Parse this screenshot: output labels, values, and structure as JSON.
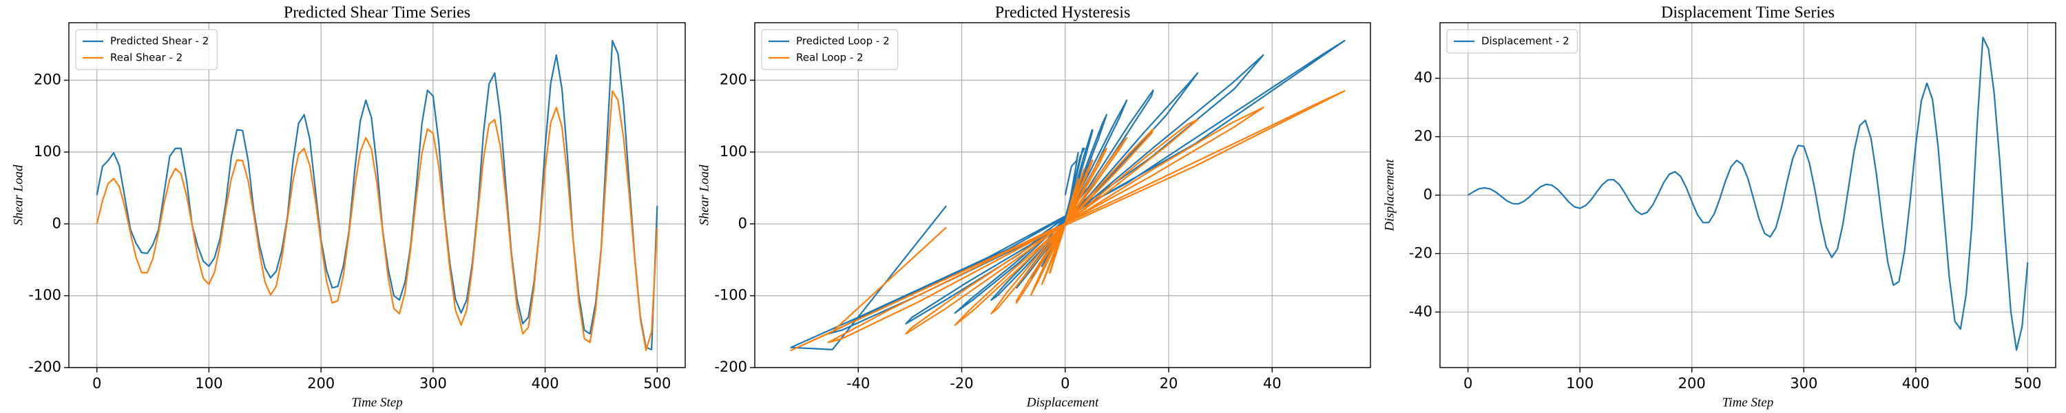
{
  "chart_data": [
    {
      "type": "line",
      "title": "Predicted Shear Time Series",
      "xlabel": "Time Step",
      "ylabel": "Shear Load",
      "x": [
        0,
        5,
        10,
        15,
        20,
        25,
        30,
        35,
        40,
        45,
        50,
        55,
        60,
        65,
        70,
        75,
        80,
        85,
        90,
        95,
        100,
        105,
        110,
        115,
        120,
        125,
        130,
        135,
        140,
        145,
        150,
        155,
        160,
        165,
        170,
        175,
        180,
        185,
        190,
        195,
        200,
        205,
        210,
        215,
        220,
        225,
        230,
        235,
        240,
        245,
        250,
        255,
        260,
        265,
        270,
        275,
        280,
        285,
        290,
        295,
        300,
        305,
        310,
        315,
        320,
        325,
        330,
        335,
        340,
        345,
        350,
        355,
        360,
        365,
        370,
        375,
        380,
        385,
        390,
        395,
        400,
        405,
        410,
        415,
        420,
        425,
        430,
        435,
        440,
        445,
        450,
        455,
        460,
        465,
        470,
        475,
        480,
        485,
        490,
        495,
        500
      ],
      "series": [
        {
          "name": "Predicted Shear - 2",
          "color": "#1f77b4",
          "values": [
            40,
            80,
            88,
            99,
            81,
            36,
            -8,
            -27,
            -40,
            -41,
            -29,
            -8,
            43,
            94,
            105,
            105,
            61,
            -2,
            -31,
            -52,
            -59,
            -47,
            -20,
            29,
            94,
            131,
            130,
            88,
            19,
            -29,
            -61,
            -75,
            -66,
            -37,
            9,
            87,
            140,
            152,
            118,
            47,
            -22,
            -65,
            -89,
            -87,
            -58,
            -10,
            73,
            143,
            172,
            148,
            79,
            -9,
            -63,
            -100,
            -106,
            -81,
            -30,
            51,
            139,
            186,
            178,
            115,
            16,
            -55,
            -105,
            -124,
            -106,
            -55,
            23,
            127,
            195,
            210,
            151,
            52,
            -42,
            -105,
            -139,
            -130,
            -82,
            -8,
            107,
            196,
            235,
            188,
            92,
            -22,
            -99,
            -148,
            -153,
            -111,
            -35,
            111,
            255,
            237,
            166,
            57,
            -47,
            -130,
            -172,
            -175,
            25
          ]
        },
        {
          "name": "Real Shear - 2",
          "color": "#ff7f0e",
          "values": [
            0,
            32,
            56,
            63,
            52,
            23,
            -13,
            -47,
            -68,
            -68,
            -48,
            -12,
            29,
            62,
            77,
            70,
            40,
            -2,
            -46,
            -76,
            -84,
            -67,
            -29,
            20,
            63,
            89,
            88,
            60,
            13,
            -39,
            -81,
            -99,
            -87,
            -48,
            6,
            60,
            97,
            105,
            81,
            33,
            -27,
            -80,
            -110,
            -107,
            -71,
            -13,
            51,
            100,
            120,
            104,
            56,
            -11,
            -75,
            -118,
            -125,
            -95,
            -35,
            36,
            98,
            132,
            126,
            81,
            11,
            -63,
            -120,
            -141,
            -120,
            -62,
            16,
            91,
            139,
            145,
            108,
            37,
            -46,
            -117,
            -153,
            -144,
            -90,
            -8,
            77,
            141,
            162,
            135,
            66,
            -23,
            -108,
            -160,
            -165,
            -120,
            -38,
            80,
            185,
            172,
            120,
            41,
            -50,
            -133,
            -176,
            -150,
            -5
          ]
        }
      ],
      "xlim": [
        -25,
        525
      ],
      "xticks": [
        0,
        100,
        200,
        300,
        400,
        500
      ],
      "ylim": [
        -200,
        280
      ],
      "yticks": [
        -200,
        -100,
        0,
        100,
        200
      ],
      "grid": true,
      "legend": "upper-left"
    },
    {
      "type": "line",
      "title": "Predicted Hysteresis",
      "xlabel": "Displacement",
      "ylabel": "Shear Load",
      "series": [
        {
          "name": "Predicted Loop - 2",
          "color": "#1f77b4",
          "x": [
            0,
            1.2,
            2.2,
            2.5,
            2.1,
            1.0,
            -0.5,
            -2.0,
            -2.9,
            -3.0,
            -2.1,
            -0.6,
            1.3,
            2.9,
            3.7,
            3.4,
            2.0,
            -0.1,
            -2.3,
            -4.0,
            -4.5,
            -3.6,
            -1.6,
            1.1,
            3.6,
            5.2,
            5.3,
            3.7,
            0.8,
            -2.5,
            -5.3,
            -6.6,
            -5.9,
            -3.4,
            0.4,
            4.4,
            7.2,
            8.0,
            6.4,
            2.6,
            -2.2,
            -6.7,
            -9.4,
            -9.4,
            -6.4,
            -1.2,
            4.8,
            9.7,
            11.9,
            10.5,
            5.8,
            -1.1,
            -8.1,
            -13.1,
            -14.3,
            -11.2,
            -4.3,
            4.5,
            12.4,
            17.0,
            16.7,
            11.0,
            1.6,
            -9.1,
            -17.7,
            -21.3,
            -18.5,
            -9.8,
            2.7,
            15.2,
            23.8,
            25.6,
            19.5,
            6.9,
            -8.8,
            -22.9,
            -30.8,
            -29.6,
            -19.1,
            -1.8,
            17.2,
            32.3,
            38.3,
            32.7,
            16.5,
            -6.0,
            -28.2,
            -43.2,
            -45.8,
            -34.1,
            -11.0,
            25,
            54,
            50,
            35,
            12,
            -15,
            -40,
            -53,
            -45,
            -23
          ],
          "values": [
            40,
            80,
            88,
            99,
            81,
            36,
            -8,
            -27,
            -40,
            -41,
            -29,
            -8,
            43,
            94,
            105,
            105,
            61,
            -2,
            -31,
            -52,
            -59,
            -47,
            -20,
            29,
            94,
            131,
            130,
            88,
            19,
            -29,
            -61,
            -75,
            -66,
            -37,
            9,
            87,
            140,
            152,
            118,
            47,
            -22,
            -65,
            -89,
            -87,
            -58,
            -10,
            73,
            143,
            172,
            148,
            79,
            -9,
            -63,
            -100,
            -106,
            -81,
            -30,
            51,
            139,
            186,
            178,
            115,
            16,
            -55,
            -105,
            -124,
            -106,
            -55,
            23,
            127,
            195,
            210,
            151,
            52,
            -42,
            -105,
            -139,
            -130,
            -82,
            -8,
            107,
            196,
            235,
            188,
            92,
            -22,
            -99,
            -148,
            -153,
            -111,
            -35,
            111,
            255,
            237,
            166,
            57,
            -47,
            -130,
            -172,
            -175,
            25
          ]
        },
        {
          "name": "Real Loop - 2",
          "color": "#ff7f0e",
          "x": [
            0,
            1.2,
            2.2,
            2.5,
            2.1,
            1.0,
            -0.5,
            -2.0,
            -2.9,
            -3.0,
            -2.1,
            -0.6,
            1.3,
            2.9,
            3.7,
            3.4,
            2.0,
            -0.1,
            -2.3,
            -4.0,
            -4.5,
            -3.6,
            -1.6,
            1.1,
            3.6,
            5.2,
            5.3,
            3.7,
            0.8,
            -2.5,
            -5.3,
            -6.6,
            -5.9,
            -3.4,
            0.4,
            4.4,
            7.2,
            8.0,
            6.4,
            2.6,
            -2.2,
            -6.7,
            -9.4,
            -9.4,
            -6.4,
            -1.2,
            4.8,
            9.7,
            11.9,
            10.5,
            5.8,
            -1.1,
            -8.1,
            -13.1,
            -14.3,
            -11.2,
            -4.3,
            4.5,
            12.4,
            17.0,
            16.7,
            11.0,
            1.6,
            -9.1,
            -17.7,
            -21.3,
            -18.5,
            -9.8,
            2.7,
            15.2,
            23.8,
            25.6,
            19.5,
            6.9,
            -8.8,
            -22.9,
            -30.8,
            -29.6,
            -19.1,
            -1.8,
            17.2,
            32.3,
            38.3,
            32.7,
            16.5,
            -6.0,
            -28.2,
            -43.2,
            -45.8,
            -34.1,
            -11.0,
            25,
            54,
            50,
            35,
            12,
            -15,
            -40,
            -53,
            -45,
            -23
          ],
          "values": [
            0,
            32,
            56,
            63,
            52,
            23,
            -13,
            -47,
            -68,
            -68,
            -48,
            -12,
            29,
            62,
            77,
            70,
            40,
            -2,
            -46,
            -76,
            -84,
            -67,
            -29,
            20,
            63,
            89,
            88,
            60,
            13,
            -39,
            -81,
            -99,
            -87,
            -48,
            6,
            60,
            97,
            105,
            81,
            33,
            -27,
            -80,
            -110,
            -107,
            -71,
            -13,
            51,
            100,
            120,
            104,
            56,
            -11,
            -75,
            -118,
            -125,
            -95,
            -35,
            36,
            98,
            132,
            126,
            81,
            11,
            -63,
            -120,
            -141,
            -120,
            -62,
            16,
            91,
            139,
            145,
            108,
            37,
            -46,
            -117,
            -153,
            -144,
            -90,
            -8,
            77,
            141,
            162,
            135,
            66,
            -23,
            -108,
            -160,
            -165,
            -120,
            -38,
            80,
            185,
            172,
            120,
            41,
            -50,
            -133,
            -176,
            -150,
            -5
          ]
        }
      ],
      "xlim": [
        -60,
        59
      ],
      "xticks": [
        -40,
        -20,
        0,
        20,
        40
      ],
      "ylim": [
        -200,
        280
      ],
      "yticks": [
        -200,
        -100,
        0,
        100,
        200
      ],
      "grid": true,
      "legend": "upper-left"
    },
    {
      "type": "line",
      "title": "Displacement Time Series",
      "xlabel": "Time Step",
      "ylabel": "Displacement",
      "x": [
        0,
        5,
        10,
        15,
        20,
        25,
        30,
        35,
        40,
        45,
        50,
        55,
        60,
        65,
        70,
        75,
        80,
        85,
        90,
        95,
        100,
        105,
        110,
        115,
        120,
        125,
        130,
        135,
        140,
        145,
        150,
        155,
        160,
        165,
        170,
        175,
        180,
        185,
        190,
        195,
        200,
        205,
        210,
        215,
        220,
        225,
        230,
        235,
        240,
        245,
        250,
        255,
        260,
        265,
        270,
        275,
        280,
        285,
        290,
        295,
        300,
        305,
        310,
        315,
        320,
        325,
        330,
        335,
        340,
        345,
        350,
        355,
        360,
        365,
        370,
        375,
        380,
        385,
        390,
        395,
        400,
        405,
        410,
        415,
        420,
        425,
        430,
        435,
        440,
        445,
        450,
        455,
        460,
        465,
        470,
        475,
        480,
        485,
        490,
        495,
        500
      ],
      "series": [
        {
          "name": "Displacement - 2",
          "color": "#1f77b4",
          "values": [
            0,
            1.2,
            2.2,
            2.5,
            2.1,
            1.0,
            -0.5,
            -2.0,
            -2.9,
            -3.0,
            -2.1,
            -0.6,
            1.3,
            2.9,
            3.7,
            3.4,
            2.0,
            -0.1,
            -2.3,
            -4.0,
            -4.5,
            -3.6,
            -1.6,
            1.1,
            3.6,
            5.2,
            5.3,
            3.7,
            0.8,
            -2.5,
            -5.3,
            -6.6,
            -5.9,
            -3.4,
            0.4,
            4.4,
            7.2,
            8.0,
            6.4,
            2.6,
            -2.2,
            -6.7,
            -9.4,
            -9.4,
            -6.4,
            -1.2,
            4.8,
            9.7,
            11.9,
            10.5,
            5.8,
            -1.1,
            -8.1,
            -13.1,
            -14.3,
            -11.2,
            -4.3,
            4.5,
            12.4,
            17.0,
            16.7,
            11.0,
            1.6,
            -9.1,
            -17.7,
            -21.3,
            -18.5,
            -9.8,
            2.7,
            15.2,
            23.8,
            25.6,
            19.5,
            6.9,
            -8.8,
            -22.9,
            -30.8,
            -29.6,
            -19.1,
            -1.8,
            17.2,
            32.3,
            38.3,
            32.7,
            16.5,
            -6.0,
            -28.2,
            -43.2,
            -45.8,
            -34.1,
            -11.0,
            25,
            54,
            50,
            35,
            12,
            -15,
            -40,
            -53,
            -45,
            -23
          ]
        }
      ],
      "xlim": [
        -25,
        525
      ],
      "xticks": [
        0,
        100,
        200,
        300,
        400,
        500
      ],
      "ylim": [
        -59,
        59
      ],
      "yticks": [
        -40,
        -20,
        0,
        20,
        40
      ],
      "grid": true,
      "legend": "upper-left"
    }
  ]
}
